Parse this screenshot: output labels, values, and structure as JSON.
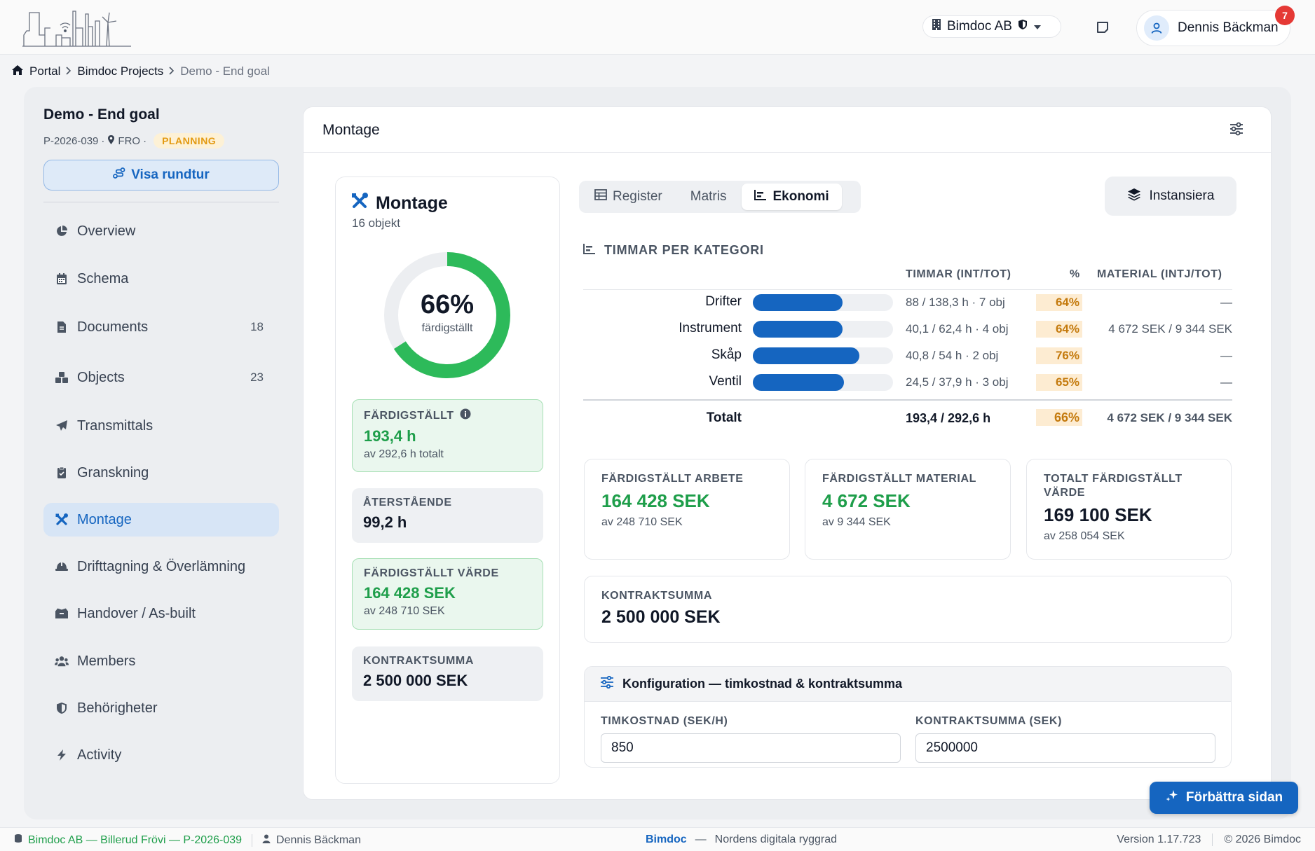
{
  "org": {
    "name": "Bimdoc AB"
  },
  "user": {
    "name": "Dennis Bäckman",
    "notifications": "7"
  },
  "breadcrumb": {
    "portal": "Portal",
    "projects": "Bimdoc Projects",
    "current": "Demo - End goal"
  },
  "project": {
    "title": "Demo - End goal",
    "code": "P-2026-039",
    "sep1": "·",
    "location": "FRO",
    "sep2": "·",
    "status": "PLANNING",
    "tour_label": "Visa rundtur"
  },
  "sidebar": {
    "items": [
      {
        "label": "Overview",
        "icon": "chart-pie-icon"
      },
      {
        "label": "Schema",
        "icon": "calendar-icon"
      },
      {
        "label": "Documents",
        "icon": "document-icon",
        "count": "18"
      },
      {
        "label": "Objects",
        "icon": "cubes-icon",
        "count": "23"
      },
      {
        "label": "Transmittals",
        "icon": "paper-plane-icon"
      },
      {
        "label": "Granskning",
        "icon": "clipboard-check-icon"
      },
      {
        "label": "Montage",
        "icon": "tools-icon",
        "active": true
      },
      {
        "label": "Drifttagning & Överlämning",
        "icon": "helmet-icon"
      },
      {
        "label": "Handover / As-built",
        "icon": "box-open-icon"
      },
      {
        "label": "Members",
        "icon": "users-icon"
      },
      {
        "label": "Behörigheter",
        "icon": "shield-icon"
      },
      {
        "label": "Activity",
        "icon": "bolt-icon"
      }
    ]
  },
  "panel": {
    "title": "Montage"
  },
  "summary": {
    "title": "Montage",
    "subtitle": "16 objekt",
    "progress_pct": 66,
    "progress_text": "66%",
    "progress_label": "färdigställt",
    "done": {
      "label": "FÄRDIGSTÄLLT",
      "value": "193,4 h",
      "sub": "av 292,6 h totalt"
    },
    "remaining": {
      "label": "ÅTERSTÅENDE",
      "value": "99,2 h"
    },
    "value_done": {
      "label": "FÄRDIGSTÄLLT VÄRDE",
      "value": "164 428 SEK",
      "sub": "av 248 710 SEK"
    },
    "contract": {
      "label": "KONTRAKTSUMMA",
      "value": "2 500 000 SEK"
    }
  },
  "tabs": [
    {
      "label": "Register",
      "icon": "table-icon"
    },
    {
      "label": "Matris"
    },
    {
      "label": "Ekonomi",
      "icon": "chart-bar-icon",
      "active": true
    }
  ],
  "instantiate_label": "Instansiera",
  "chart_data": {
    "type": "bar",
    "title": "TIMMAR PER KATEGORI",
    "columns": {
      "hours": "TIMMAR (INT/TOT)",
      "pct": "%",
      "material": "MATERIAL (INTJ/TOT)"
    },
    "categories": [
      "Drifter",
      "Instrument",
      "Skåp",
      "Ventil"
    ],
    "values": [
      64,
      64,
      76,
      65
    ],
    "hours_done": [
      88,
      40.1,
      40.8,
      24.5
    ],
    "hours_total": [
      138.3,
      62.4,
      54,
      37.9
    ],
    "hours_labels": [
      "88 / 138,3 h · 7 obj",
      "40,1 / 62,4 h · 4 obj",
      "40,8 / 54 h · 2 obj",
      "24,5 / 37,9 h · 3 obj"
    ],
    "pct_labels": [
      "64%",
      "64%",
      "76%",
      "65%"
    ],
    "material_labels": [
      "—",
      "4 672 SEK / 9 344 SEK",
      "—",
      "—"
    ],
    "ylim": [
      0,
      100
    ],
    "bar_color": "#1565c0",
    "track_color": "#eef0f3",
    "total": {
      "label": "Totalt",
      "hours": "193,4 / 292,6 h",
      "pct": "66%",
      "material": "4 672 SEK / 9 344 SEK"
    }
  },
  "cards": {
    "work": {
      "label": "FÄRDIGSTÄLLT ARBETE",
      "value": "164 428 SEK",
      "sub": "av 248 710 SEK"
    },
    "material": {
      "label": "FÄRDIGSTÄLLT MATERIAL",
      "value": "4 672 SEK",
      "sub": "av 9 344 SEK"
    },
    "total": {
      "label": "TOTALT FÄRDIGSTÄLLT VÄRDE",
      "value": "169 100 SEK",
      "sub": "av 258 054 SEK"
    },
    "contract": {
      "label": "KONTRAKTSUMMA",
      "value": "2 500 000 SEK"
    }
  },
  "config": {
    "title": "Konfiguration — timkostnad & kontraktsumma",
    "hourly_label": "TIMKOSTNAD (SEK/H)",
    "hourly_value": "850",
    "contract_label": "KONTRAKTSUMMA (SEK)",
    "contract_value": "2500000"
  },
  "improve_label": "Förbättra sidan",
  "footer": {
    "context": "Bimdoc AB — Billerud Frövi — P-2026-039",
    "user": "Dennis Bäckman",
    "brand": "Bimdoc",
    "dash": "—",
    "tagline": "Nordens digitala ryggrad",
    "version": "Version 1.17.723",
    "copyright": "© 2026 Bimdoc"
  },
  "colors": {
    "accent": "#1565c0",
    "success": "#1e9e4a",
    "warning": "#c47a0d",
    "danger": "#e53935"
  }
}
